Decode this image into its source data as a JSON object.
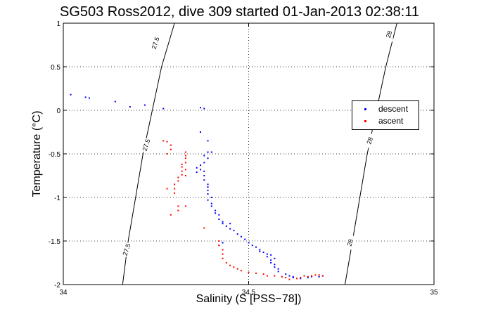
{
  "chart_data": {
    "type": "scatter",
    "title": "SG503 Ross2012, dive 309 started 01-Jan-2013 02:38:11",
    "xlabel": "Salinity (S [PSS−78])",
    "ylabel": "Temperature (°C)",
    "xlim": [
      34,
      35
    ],
    "ylim": [
      -2,
      1
    ],
    "xticks": [
      "34",
      "34.5",
      "35"
    ],
    "yticks": [
      "-2",
      "-1.5",
      "-1",
      "-0.5",
      "0",
      "0.5",
      "1"
    ],
    "grid": true,
    "legend_position": "right",
    "contours": [
      {
        "label": "27.5",
        "points": [
          [
            34.16,
            -2.0
          ],
          [
            34.175,
            -1.5
          ],
          [
            34.195,
            -1.0
          ],
          [
            34.215,
            -0.5
          ],
          [
            34.24,
            0.0
          ],
          [
            34.265,
            0.5
          ],
          [
            34.3,
            1.0
          ]
        ],
        "label_positions": [
          [
            34.25,
            0.77
          ],
          [
            34.225,
            -0.4
          ],
          [
            34.172,
            -1.6
          ]
        ]
      },
      {
        "label": "28",
        "points": [
          [
            34.76,
            -2.0
          ],
          [
            34.78,
            -1.5
          ],
          [
            34.8,
            -1.0
          ],
          [
            34.82,
            -0.5
          ],
          [
            34.845,
            0.0
          ],
          [
            34.87,
            0.5
          ],
          [
            34.9,
            1.0
          ]
        ],
        "label_positions": [
          [
            34.88,
            0.87
          ],
          [
            34.828,
            -0.35
          ],
          [
            34.775,
            -1.52
          ]
        ]
      }
    ],
    "series": [
      {
        "name": "descent",
        "color": "#0000ff",
        "points": [
          [
            34.02,
            0.18
          ],
          [
            34.06,
            0.15
          ],
          [
            34.07,
            0.14
          ],
          [
            34.14,
            0.1
          ],
          [
            34.18,
            0.04
          ],
          [
            34.22,
            0.06
          ],
          [
            34.27,
            0.02
          ],
          [
            34.37,
            0.03
          ],
          [
            34.38,
            0.02
          ],
          [
            34.37,
            -0.25
          ],
          [
            34.39,
            -0.35
          ],
          [
            34.39,
            -0.48
          ],
          [
            34.4,
            -0.48
          ],
          [
            34.38,
            -0.52
          ],
          [
            34.39,
            -0.55
          ],
          [
            34.38,
            -0.6
          ],
          [
            34.37,
            -0.63
          ],
          [
            34.36,
            -0.66
          ],
          [
            34.37,
            -0.68
          ],
          [
            34.38,
            -0.7
          ],
          [
            34.36,
            -0.71
          ],
          [
            34.38,
            -0.75
          ],
          [
            34.38,
            -0.8
          ],
          [
            34.39,
            -0.85
          ],
          [
            34.39,
            -0.88
          ],
          [
            34.39,
            -0.92
          ],
          [
            34.39,
            -0.96
          ],
          [
            34.4,
            -1.0
          ],
          [
            34.39,
            -1.03
          ],
          [
            34.4,
            -1.07
          ],
          [
            34.4,
            -1.1
          ],
          [
            34.41,
            -1.15
          ],
          [
            34.41,
            -1.18
          ],
          [
            34.42,
            -1.2
          ],
          [
            34.42,
            -1.25
          ],
          [
            34.43,
            -1.28
          ],
          [
            34.43,
            -1.3
          ],
          [
            34.45,
            -1.3
          ],
          [
            34.44,
            -1.33
          ],
          [
            34.45,
            -1.36
          ],
          [
            34.46,
            -1.38
          ],
          [
            34.47,
            -1.42
          ],
          [
            34.48,
            -1.45
          ],
          [
            34.49,
            -1.48
          ],
          [
            34.5,
            -1.52
          ],
          [
            34.51,
            -1.55
          ],
          [
            34.52,
            -1.57
          ],
          [
            34.53,
            -1.6
          ],
          [
            34.53,
            -1.62
          ],
          [
            34.54,
            -1.63
          ],
          [
            34.55,
            -1.65
          ],
          [
            34.56,
            -1.66
          ],
          [
            34.55,
            -1.68
          ],
          [
            34.57,
            -1.7
          ],
          [
            34.56,
            -1.72
          ],
          [
            34.56,
            -1.75
          ],
          [
            34.57,
            -1.77
          ],
          [
            34.57,
            -1.8
          ],
          [
            34.58,
            -1.82
          ],
          [
            34.58,
            -1.85
          ],
          [
            34.6,
            -1.88
          ],
          [
            34.61,
            -1.9
          ],
          [
            34.62,
            -1.91
          ],
          [
            34.62,
            -1.92
          ],
          [
            34.64,
            -1.93
          ],
          [
            34.66,
            -1.92
          ],
          [
            34.67,
            -1.91
          ],
          [
            34.69,
            -1.91
          ],
          [
            34.7,
            -1.9
          ],
          [
            34.43,
            -1.52
          ],
          [
            34.42,
            -1.55
          ]
        ]
      },
      {
        "name": "ascent",
        "color": "#ff0000",
        "points": [
          [
            34.27,
            -0.35
          ],
          [
            34.28,
            -0.36
          ],
          [
            34.29,
            -0.4
          ],
          [
            34.29,
            -0.45
          ],
          [
            34.28,
            -0.5
          ],
          [
            34.33,
            -0.48
          ],
          [
            34.33,
            -0.52
          ],
          [
            34.33,
            -0.55
          ],
          [
            34.33,
            -0.6
          ],
          [
            34.32,
            -0.62
          ],
          [
            34.32,
            -0.65
          ],
          [
            34.33,
            -0.68
          ],
          [
            34.32,
            -0.7
          ],
          [
            34.32,
            -0.74
          ],
          [
            34.33,
            -0.75
          ],
          [
            34.31,
            -0.77
          ],
          [
            34.31,
            -0.81
          ],
          [
            34.3,
            -0.85
          ],
          [
            34.3,
            -0.9
          ],
          [
            34.28,
            -0.9
          ],
          [
            34.3,
            -0.95
          ],
          [
            34.31,
            -1.1
          ],
          [
            34.33,
            -1.1
          ],
          [
            34.31,
            -1.15
          ],
          [
            34.29,
            -1.2
          ],
          [
            34.38,
            -1.35
          ],
          [
            34.42,
            -1.5
          ],
          [
            34.42,
            -1.55
          ],
          [
            34.43,
            -1.6
          ],
          [
            34.43,
            -1.65
          ],
          [
            34.43,
            -1.7
          ],
          [
            34.44,
            -1.75
          ],
          [
            34.45,
            -1.78
          ],
          [
            34.46,
            -1.8
          ],
          [
            34.47,
            -1.82
          ],
          [
            34.48,
            -1.84
          ],
          [
            34.5,
            -1.86
          ],
          [
            34.52,
            -1.87
          ],
          [
            34.54,
            -1.88
          ],
          [
            34.55,
            -1.9
          ],
          [
            34.57,
            -1.9
          ],
          [
            34.59,
            -1.91
          ],
          [
            34.6,
            -1.92
          ],
          [
            34.61,
            -1.94
          ],
          [
            34.63,
            -1.93
          ],
          [
            34.64,
            -1.92
          ],
          [
            34.65,
            -1.9
          ],
          [
            34.66,
            -1.91
          ],
          [
            34.67,
            -1.9
          ],
          [
            34.68,
            -1.89
          ],
          [
            34.69,
            -1.89
          ],
          [
            34.7,
            -1.9
          ]
        ]
      }
    ]
  }
}
